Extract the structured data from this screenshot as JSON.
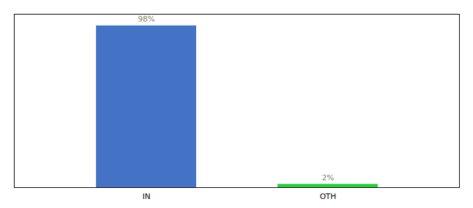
{
  "chart_data": {
    "type": "bar",
    "categories": [
      "IN",
      "OTH"
    ],
    "values": [
      98,
      2
    ],
    "value_labels": [
      "98%",
      "2%"
    ],
    "colors": [
      "#4472C4",
      "#2ECC40"
    ],
    "ylim": [
      0,
      105
    ],
    "yticks": [],
    "grid": false,
    "data_labels": true,
    "tick_labels": "x"
  }
}
